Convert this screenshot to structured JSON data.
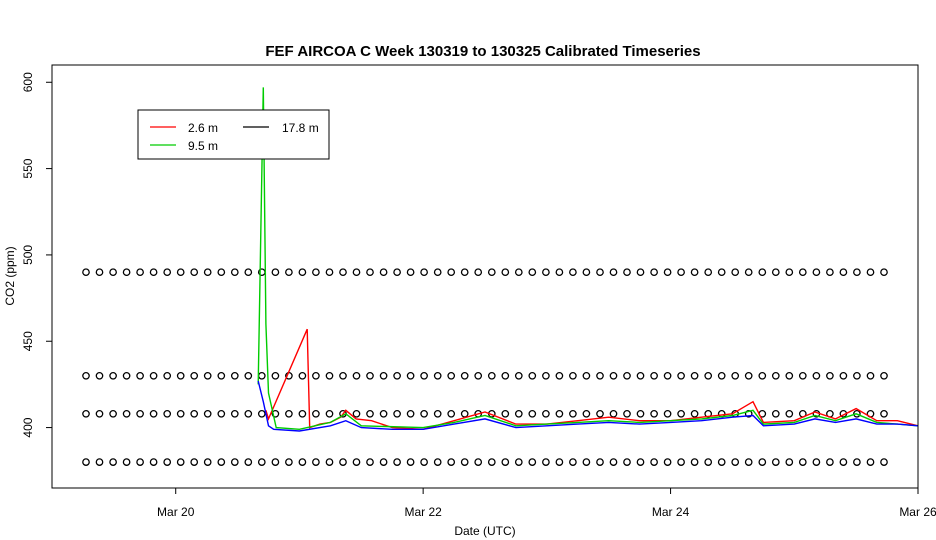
{
  "chart_data": {
    "type": "line",
    "title": "FEF AIRCOA C  Week 130319 to 130325  Calibrated Timeseries",
    "xlabel": "Date (UTC)",
    "ylabel": "CO2 (ppm)",
    "xlim": [
      "2013-03-19T00:00",
      "2013-03-26T00:00"
    ],
    "ylim": [
      365,
      610
    ],
    "x_ticks": [
      "Mar 20",
      "Mar 22",
      "Mar 24",
      "Mar 26"
    ],
    "y_ticks": [
      400,
      450,
      500,
      550,
      600
    ],
    "legend": {
      "position": "top-left",
      "entries": [
        "2.6 m",
        "17.8 m",
        "9.5 m"
      ]
    },
    "series": [
      {
        "name": "2.6 m",
        "color": "#ff0000",
        "x": [
          "2013-03-20T17:30",
          "2013-03-20T18:00",
          "2013-03-21T01:30",
          "2013-03-21T02:00",
          "2013-03-21T04:00",
          "2013-03-21T06:00",
          "2013-03-21T08:00",
          "2013-03-21T09:00",
          "2013-03-21T11:00",
          "2013-03-21T14:00",
          "2013-03-21T18:00",
          "2013-03-22T00:00",
          "2013-03-22T06:00",
          "2013-03-22T12:00",
          "2013-03-22T18:00",
          "2013-03-23T00:00",
          "2013-03-23T06:00",
          "2013-03-23T12:00",
          "2013-03-23T18:00",
          "2013-03-24T00:00",
          "2013-03-24T06:00",
          "2013-03-24T12:00",
          "2013-03-24T16:00",
          "2013-03-24T18:00",
          "2013-03-25T00:00",
          "2013-03-25T04:00",
          "2013-03-25T08:00",
          "2013-03-25T12:00",
          "2013-03-25T16:00",
          "2013-03-25T20:00",
          "2013-03-26T00:00"
        ],
        "y": [
          410,
          405,
          457,
          400,
          402,
          403,
          406,
          410,
          405,
          404,
          400,
          399,
          404,
          409,
          402,
          402,
          404,
          406,
          404,
          404,
          406,
          408,
          415,
          403,
          404,
          409,
          405,
          411,
          404,
          404,
          401
        ]
      },
      {
        "name": "9.5 m",
        "color": "#00cc00",
        "x": [
          "2013-03-20T16:00",
          "2013-03-20T17:00",
          "2013-03-20T17:30",
          "2013-03-20T18:00",
          "2013-03-20T19:30",
          "2013-03-21T00:00",
          "2013-03-21T06:00",
          "2013-03-21T09:00",
          "2013-03-21T12:00",
          "2013-03-22T00:00",
          "2013-03-22T06:00",
          "2013-03-22T12:00",
          "2013-03-22T18:00",
          "2013-03-23T00:00",
          "2013-03-23T06:00",
          "2013-03-23T12:00",
          "2013-03-23T18:00",
          "2013-03-24T00:00",
          "2013-03-24T06:00",
          "2013-03-24T12:00",
          "2013-03-24T16:00",
          "2013-03-24T18:00",
          "2013-03-25T00:00",
          "2013-03-25T04:00",
          "2013-03-25T08:00",
          "2013-03-25T12:00",
          "2013-03-25T16:00",
          "2013-03-25T20:00",
          "2013-03-26T00:00"
        ],
        "y": [
          425,
          597,
          460,
          420,
          400,
          399,
          403,
          408,
          401,
          400,
          403,
          407,
          401,
          402,
          403,
          404,
          403,
          404,
          405,
          407,
          410,
          402,
          403,
          407,
          404,
          408,
          403,
          402,
          401
        ]
      },
      {
        "name": "17.8 m",
        "color": "#0000ff",
        "x": [
          "2013-03-20T16:00",
          "2013-03-20T17:00",
          "2013-03-20T18:00",
          "2013-03-20T19:00",
          "2013-03-21T00:00",
          "2013-03-21T06:00",
          "2013-03-21T09:00",
          "2013-03-21T12:00",
          "2013-03-21T18:00",
          "2013-03-22T00:00",
          "2013-03-22T06:00",
          "2013-03-22T12:00",
          "2013-03-22T18:00",
          "2013-03-23T00:00",
          "2013-03-23T06:00",
          "2013-03-23T12:00",
          "2013-03-23T18:00",
          "2013-03-24T00:00",
          "2013-03-24T06:00",
          "2013-03-24T12:00",
          "2013-03-24T16:00",
          "2013-03-24T18:00",
          "2013-03-25T00:00",
          "2013-03-25T04:00",
          "2013-03-25T08:00",
          "2013-03-25T12:00",
          "2013-03-25T16:00",
          "2013-03-25T20:00",
          "2013-03-26T00:00"
        ],
        "y": [
          427,
          415,
          401,
          399,
          398,
          401,
          404,
          400,
          399,
          399,
          402,
          405,
          400,
          401,
          402,
          403,
          402,
          403,
          404,
          406,
          407,
          401,
          402,
          405,
          403,
          405,
          402,
          402,
          401
        ]
      }
    ],
    "marker_rows": [
      {
        "y": 490,
        "count": 60
      },
      {
        "y": 430,
        "count": 60
      },
      {
        "y": 408,
        "count": 60
      },
      {
        "y": 380,
        "count": 60
      }
    ]
  }
}
